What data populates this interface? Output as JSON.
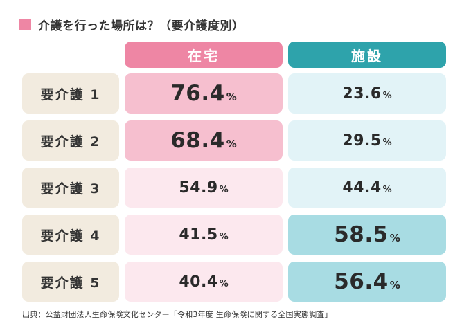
{
  "title": "介護を行った場所は？（要介護度別）",
  "colors": {
    "title_square": "#ee86a4",
    "home_header": "#ee86a4",
    "facility_header": "#2ea3ab",
    "label_bg": "#f2ebdf",
    "home_strong": "#f6bfcf",
    "home_light": "#fce8ee",
    "facility_strong": "#a8dce3",
    "facility_light": "#e2f3f7"
  },
  "chart_data": {
    "type": "table",
    "title": "介護を行った場所は？（要介護度別）",
    "columns": [
      "在宅",
      "施設"
    ],
    "rows": [
      {
        "label": "要介護 1",
        "home": "76.4",
        "facility": "23.6"
      },
      {
        "label": "要介護 2",
        "home": "68.4",
        "facility": "29.5"
      },
      {
        "label": "要介護 3",
        "home": "54.9",
        "facility": "44.4"
      },
      {
        "label": "要介護 4",
        "home": "41.5",
        "facility": "58.5"
      },
      {
        "label": "要介護 5",
        "home": "40.4",
        "facility": "56.4"
      }
    ],
    "unit": "%"
  },
  "source": "出典：公益財団法人生命保険文化センター「令和3年度 生命保険に関する全国実態調査」"
}
